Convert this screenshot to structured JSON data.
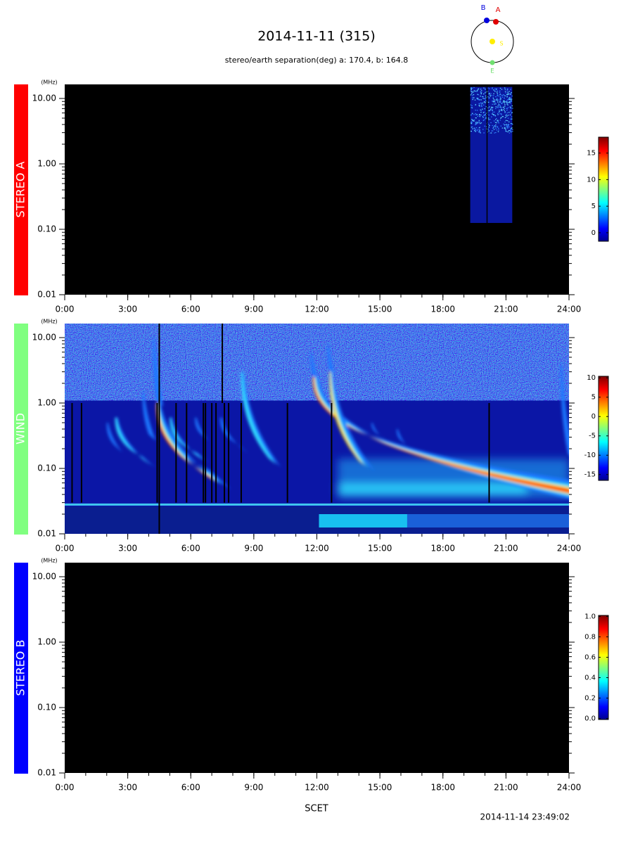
{
  "title": "2014-11-11 (315)",
  "subtitle": "stereo/earth separation(deg) a: 170.4, b: 164.8",
  "orbit": {
    "labels": [
      "B",
      "A",
      "S",
      "E"
    ]
  },
  "x_label": "SCET",
  "timestamp": "2014-11-14 23:49:02",
  "chart_data": [
    {
      "type": "spectrogram",
      "label": "STEREO A",
      "label_color": "#ff0000",
      "y_unit": "(MHz)",
      "log_y": true,
      "ylim": [
        0.01,
        16.4
      ],
      "yticks": [
        {
          "value": 10,
          "label": "10.00"
        },
        {
          "value": 1,
          "label": "1.00"
        },
        {
          "value": 0.1,
          "label": "0.10"
        },
        {
          "value": 0.01,
          "label": "0.01"
        }
      ],
      "xlim": [
        0,
        24
      ],
      "xticks": [
        {
          "value": 0,
          "label": "0:00"
        },
        {
          "value": 3,
          "label": "3:00"
        },
        {
          "value": 6,
          "label": "6:00"
        },
        {
          "value": 9,
          "label": "9:00"
        },
        {
          "value": 12,
          "label": "12:00"
        },
        {
          "value": 15,
          "label": "15:00"
        },
        {
          "value": 18,
          "label": "18:00"
        },
        {
          "value": 21,
          "label": "21:00"
        },
        {
          "value": 24,
          "label": "24:00"
        }
      ],
      "colorbar": {
        "lim": [
          -1.6,
          18
        ],
        "ticks": [
          0,
          5,
          10,
          15
        ]
      }
    },
    {
      "type": "spectrogram",
      "label": "WIND",
      "label_color": "#80ff80",
      "y_unit": "(MHz)",
      "log_y": true,
      "ylim": [
        0.01,
        16.4
      ],
      "yticks": [
        {
          "value": 10,
          "label": "10.00"
        },
        {
          "value": 1,
          "label": "1.00"
        },
        {
          "value": 0.1,
          "label": "0.10"
        },
        {
          "value": 0.01,
          "label": "0.01"
        }
      ],
      "xlim": [
        0,
        24
      ],
      "xticks": [
        {
          "value": 0,
          "label": "0:00"
        },
        {
          "value": 3,
          "label": "3:00"
        },
        {
          "value": 6,
          "label": "6:00"
        },
        {
          "value": 9,
          "label": "9:00"
        },
        {
          "value": 12,
          "label": "12:00"
        },
        {
          "value": 15,
          "label": "15:00"
        },
        {
          "value": 18,
          "label": "18:00"
        },
        {
          "value": 21,
          "label": "21:00"
        },
        {
          "value": 24,
          "label": "24:00"
        }
      ],
      "colorbar": {
        "lim": [
          -16.5,
          10.4
        ],
        "ticks": [
          10,
          5,
          0,
          -5,
          -10,
          -15
        ]
      }
    },
    {
      "type": "spectrogram",
      "label": "STEREO B",
      "label_color": "#0000ff",
      "y_unit": "(MHz)",
      "log_y": true,
      "ylim": [
        0.01,
        16.4
      ],
      "yticks": [
        {
          "value": 10,
          "label": "10.00"
        },
        {
          "value": 1,
          "label": "1.00"
        },
        {
          "value": 0.1,
          "label": "0.10"
        },
        {
          "value": 0.01,
          "label": "0.01"
        }
      ],
      "xlim": [
        0,
        24
      ],
      "xticks": [
        {
          "value": 0,
          "label": "0:00"
        },
        {
          "value": 3,
          "label": "3:00"
        },
        {
          "value": 6,
          "label": "6:00"
        },
        {
          "value": 9,
          "label": "9:00"
        },
        {
          "value": 12,
          "label": "12:00"
        },
        {
          "value": 15,
          "label": "15:00"
        },
        {
          "value": 18,
          "label": "18:00"
        },
        {
          "value": 21,
          "label": "21:00"
        },
        {
          "value": 24,
          "label": "24:00"
        }
      ],
      "colorbar": {
        "lim": [
          -0.01,
          1.01
        ],
        "ticks": [
          {
            "value": 0,
            "label": "0.0"
          },
          {
            "value": 0.2,
            "label": "0.2"
          },
          {
            "value": 0.4,
            "label": "0.4"
          },
          {
            "value": 0.6,
            "label": "0.6"
          },
          {
            "value": 0.8,
            "label": "0.8"
          },
          {
            "value": 1,
            "label": "1.0"
          }
        ]
      }
    }
  ]
}
